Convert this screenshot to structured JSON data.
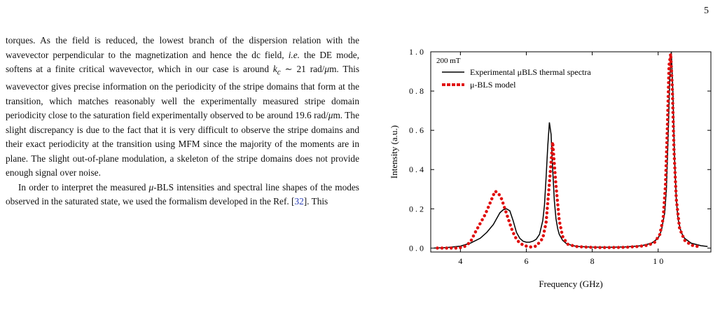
{
  "page_number": "5",
  "paragraphs": [
    {
      "indent": false,
      "segments": [
        {
          "text": "torques. As the field is reduced, the lowest branch of the dispersion relation with the wavevector perpendicular to the magnetization and hence the dc field, "
        },
        {
          "text": "i.e.",
          "style": "italic"
        },
        {
          "text": " the DE mode, softens at a finite critical wavevector, which in our case is around "
        },
        {
          "text": "k",
          "style": "italic"
        },
        {
          "text": "c",
          "style": "sub-italic"
        },
        {
          "text": " ∼ 21 rad/"
        },
        {
          "text": "μ",
          "style": "italic"
        },
        {
          "text": "m. This wavevector gives precise information on the periodicity of the stripe domains that form at the transition, which matches reasonably well the experimentally measured stripe domain periodicity close to the saturation field experimentally observed to be around 19.6 rad/"
        },
        {
          "text": "μ",
          "style": "italic"
        },
        {
          "text": "m. The slight discrepancy is due to the fact that it is very difficult to observe the stripe domains and their exact periodicity at the transition using MFM since the majority of the moments are in plane. The slight out-of-plane modulation, a skeleton of the stripe domains does not provide enough signal over noise."
        }
      ]
    },
    {
      "indent": true,
      "segments": [
        {
          "text": "In order to interpret the measured "
        },
        {
          "text": "μ",
          "style": "italic"
        },
        {
          "text": "-BLS intensities and spectral line shapes of the modes observed in the saturated state, we used the formalism developed in the Ref. ["
        },
        {
          "text": "32",
          "style": "ref"
        },
        {
          "text": "]. This"
        }
      ]
    }
  ],
  "chart_data": {
    "type": "line",
    "annotation": "200 mT",
    "xlabel": "Frequency (GHz)",
    "ylabel": "Intensity (a.u.)",
    "xlim": [
      3.1,
      11.6
    ],
    "ylim": [
      -0.02,
      1.0
    ],
    "xticks": [
      4,
      6,
      8,
      10
    ],
    "xtick_labels": [
      "4",
      "6",
      "8",
      "1 0"
    ],
    "yticks": [
      0.0,
      0.2,
      0.4,
      0.6,
      0.8,
      1.0
    ],
    "ytick_labels": [
      "0 . 0",
      "0 . 2",
      "0 . 4",
      "0 . 6",
      "0 . 8",
      "1 . 0"
    ],
    "legend_position": "top-left",
    "series": [
      {
        "name": "Experimental μBLS thermal spectra",
        "style": "solid",
        "color": "#000000",
        "x": [
          3.2,
          3.6,
          4.0,
          4.3,
          4.6,
          4.8,
          5.0,
          5.1,
          5.2,
          5.3,
          5.4,
          5.5,
          5.6,
          5.7,
          5.8,
          5.9,
          6.0,
          6.1,
          6.2,
          6.3,
          6.4,
          6.5,
          6.55,
          6.6,
          6.65,
          6.7,
          6.75,
          6.8,
          6.85,
          6.9,
          6.95,
          7.0,
          7.1,
          7.2,
          7.4,
          7.6,
          8.0,
          8.5,
          9.0,
          9.5,
          9.8,
          10.0,
          10.1,
          10.2,
          10.25,
          10.3,
          10.35,
          10.4,
          10.45,
          10.5,
          10.55,
          10.6,
          10.7,
          10.8,
          11.0,
          11.3,
          11.5
        ],
        "y": [
          0.0,
          0.003,
          0.01,
          0.025,
          0.05,
          0.08,
          0.12,
          0.15,
          0.18,
          0.195,
          0.2,
          0.19,
          0.14,
          0.08,
          0.05,
          0.035,
          0.03,
          0.03,
          0.035,
          0.045,
          0.07,
          0.14,
          0.22,
          0.36,
          0.52,
          0.64,
          0.58,
          0.4,
          0.24,
          0.15,
          0.1,
          0.07,
          0.04,
          0.025,
          0.012,
          0.008,
          0.005,
          0.004,
          0.006,
          0.012,
          0.025,
          0.05,
          0.09,
          0.18,
          0.3,
          0.55,
          0.85,
          1.0,
          0.78,
          0.45,
          0.25,
          0.15,
          0.08,
          0.05,
          0.025,
          0.012,
          0.008
        ]
      },
      {
        "name": "μ-BLS model",
        "style": "dotted",
        "color": "#e01010",
        "x": [
          3.3,
          3.5,
          3.7,
          3.9,
          4.1,
          4.3,
          4.45,
          4.55,
          4.65,
          4.75,
          4.85,
          4.95,
          5.05,
          5.15,
          5.25,
          5.35,
          5.45,
          5.55,
          5.65,
          5.75,
          5.9,
          6.1,
          6.3,
          6.5,
          6.6,
          6.7,
          6.8,
          6.9,
          7.0,
          7.1,
          7.25,
          7.5,
          7.8,
          8.2,
          8.6,
          9.0,
          9.4,
          9.7,
          9.9,
          10.05,
          10.15,
          10.22,
          10.28,
          10.33,
          10.38,
          10.43,
          10.48,
          10.55,
          10.65,
          10.8,
          11.0,
          11.3
        ],
        "y": [
          0.0,
          0.0,
          0.0,
          0.0,
          0.005,
          0.03,
          0.08,
          0.11,
          0.14,
          0.17,
          0.21,
          0.25,
          0.29,
          0.28,
          0.25,
          0.2,
          0.15,
          0.1,
          0.06,
          0.035,
          0.015,
          0.005,
          0.01,
          0.05,
          0.13,
          0.33,
          0.54,
          0.32,
          0.14,
          0.06,
          0.02,
          0.008,
          0.005,
          0.003,
          0.003,
          0.004,
          0.008,
          0.015,
          0.03,
          0.07,
          0.15,
          0.32,
          0.62,
          0.93,
          0.99,
          0.82,
          0.5,
          0.25,
          0.1,
          0.04,
          0.015,
          0.005
        ]
      }
    ]
  }
}
